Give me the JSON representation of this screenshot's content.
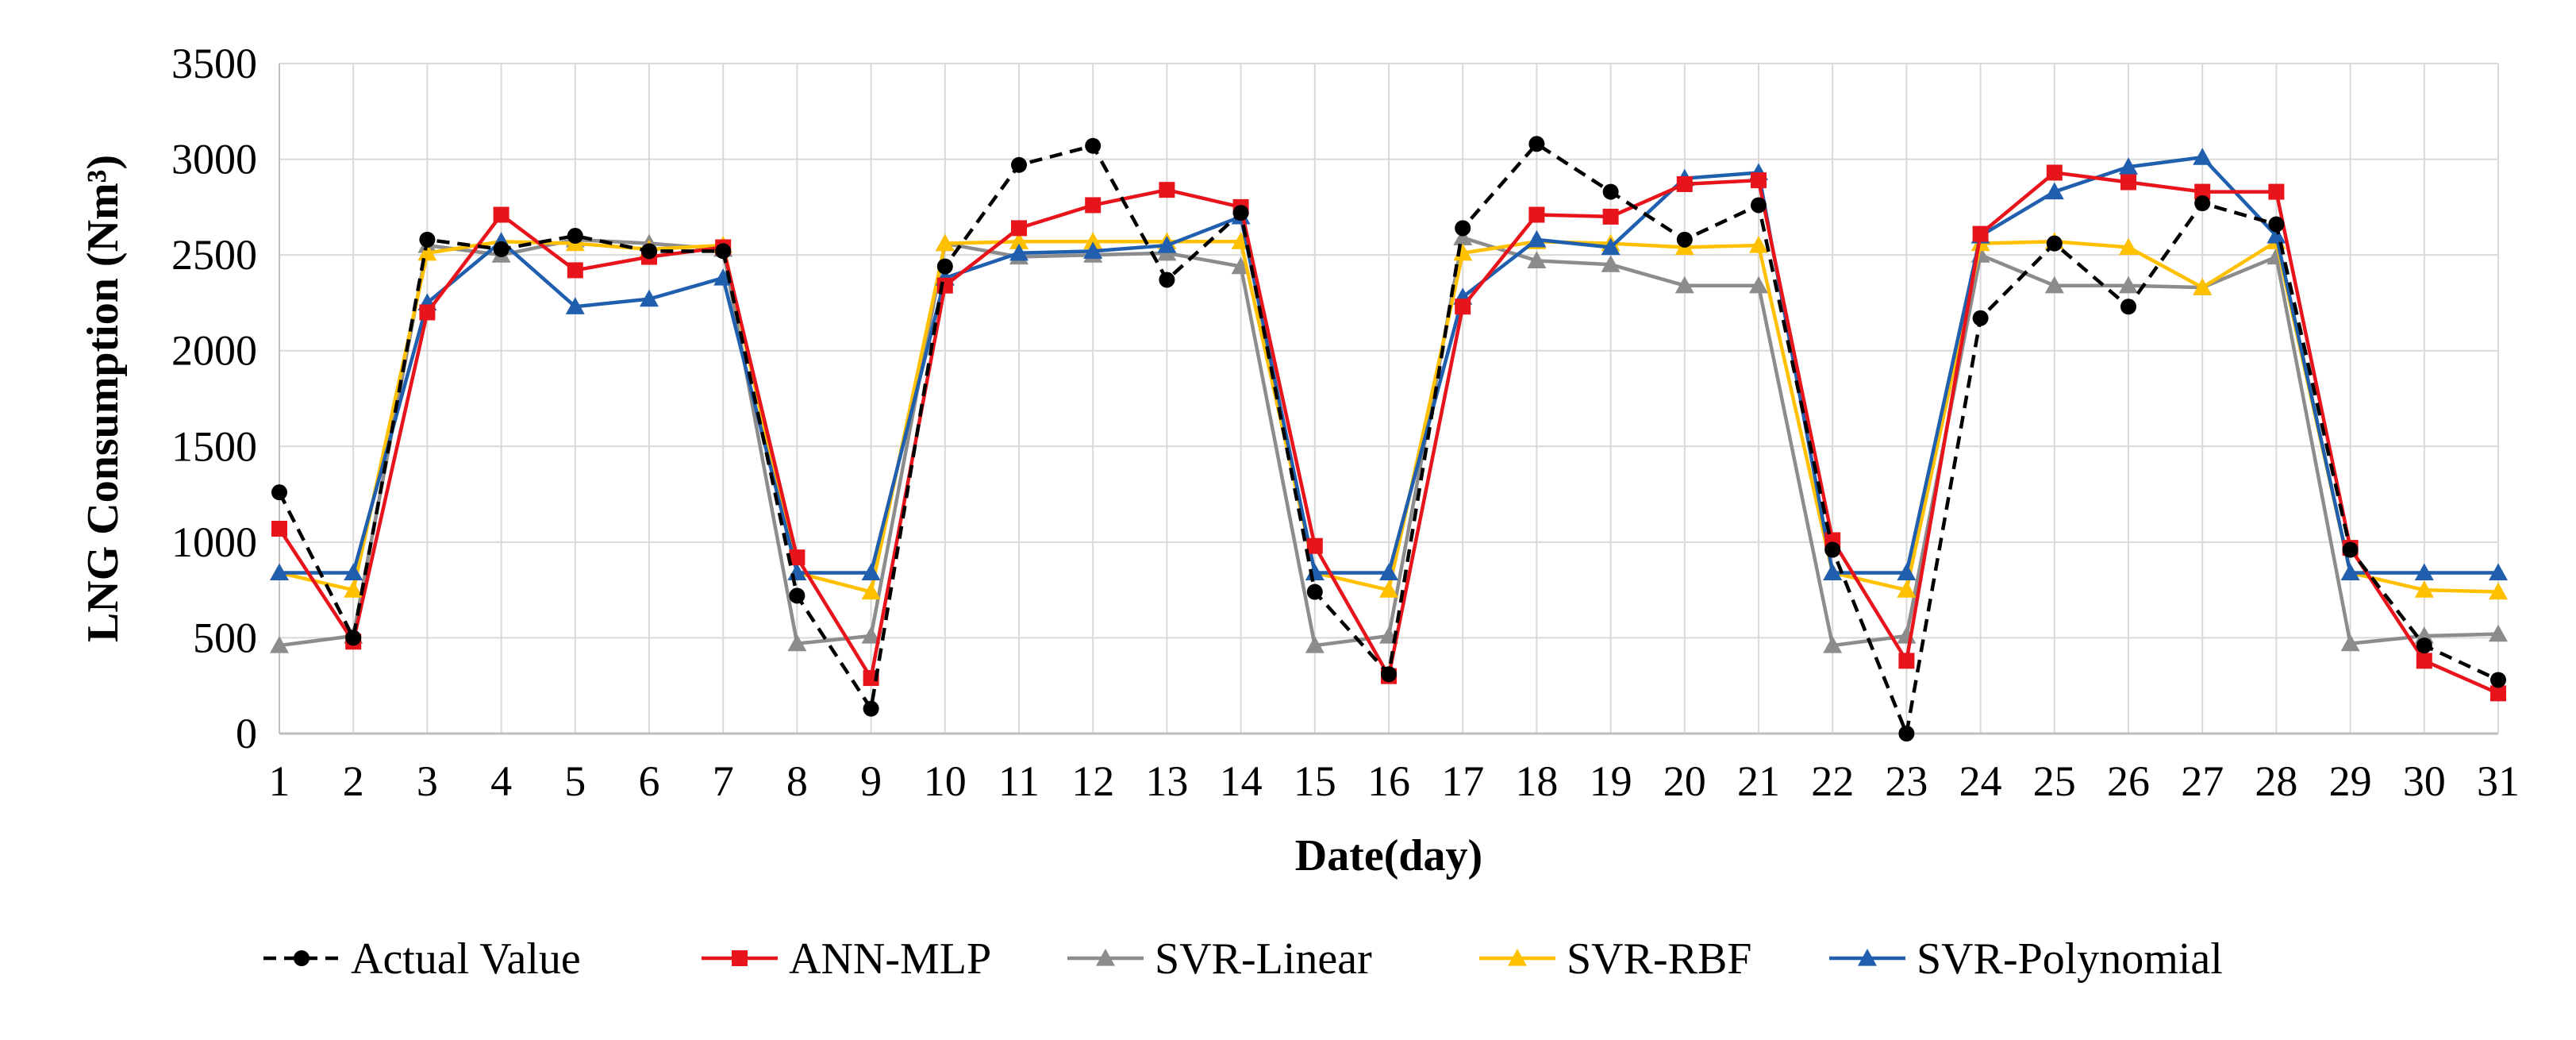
{
  "chart_data": {
    "type": "line",
    "title": "",
    "xlabel": "Date(day)",
    "ylabel": "LNG Consumption (Nm³)",
    "xlim": [
      1,
      31
    ],
    "ylim": [
      0,
      3500
    ],
    "yticks": [
      0,
      500,
      1000,
      1500,
      2000,
      2500,
      3000,
      3500
    ],
    "grid": "horizontal",
    "legend_position": "bottom",
    "x": [
      1,
      2,
      3,
      4,
      5,
      6,
      7,
      8,
      9,
      10,
      11,
      12,
      13,
      14,
      15,
      16,
      17,
      18,
      19,
      20,
      21,
      22,
      23,
      24,
      25,
      26,
      27,
      28,
      29,
      30,
      31
    ],
    "series": [
      {
        "name": "Actual Value",
        "color": "#000000",
        "marker": "circle",
        "line_style": "dashed",
        "values": [
          1260,
          500,
          2580,
          2530,
          2600,
          2520,
          2520,
          720,
          130,
          2440,
          2970,
          3070,
          2370,
          2720,
          740,
          310,
          2640,
          3080,
          2830,
          2580,
          2760,
          960,
          0,
          2170,
          2560,
          2230,
          2770,
          2660,
          960,
          460,
          280
        ]
      },
      {
        "name": "ANN-MLP",
        "color": "#e8141c",
        "marker": "square",
        "line_style": "solid",
        "values": [
          1070,
          480,
          2200,
          2710,
          2420,
          2490,
          2540,
          920,
          290,
          2340,
          2640,
          2760,
          2840,
          2750,
          980,
          300,
          2230,
          2710,
          2700,
          2870,
          2890,
          1010,
          380,
          2610,
          2930,
          2880,
          2830,
          2830,
          970,
          380,
          210
        ]
      },
      {
        "name": "SVR-Linear",
        "color": "#8c8c8c",
        "marker": "triangle",
        "line_style": "solid",
        "values": [
          460,
          510,
          2550,
          2500,
          2580,
          2560,
          2530,
          470,
          510,
          2560,
          2490,
          2500,
          2510,
          2440,
          460,
          510,
          2590,
          2470,
          2450,
          2340,
          2340,
          460,
          510,
          2500,
          2340,
          2340,
          2330,
          2490,
          470,
          510,
          520
        ]
      },
      {
        "name": "SVR-RBF",
        "color": "#ffc000",
        "marker": "triangle",
        "line_style": "solid",
        "values": [
          840,
          750,
          2510,
          2570,
          2560,
          2530,
          2550,
          840,
          740,
          2560,
          2570,
          2570,
          2570,
          2570,
          840,
          750,
          2510,
          2570,
          2560,
          2540,
          2550,
          840,
          750,
          2560,
          2570,
          2540,
          2330,
          2570,
          840,
          750,
          740
        ]
      },
      {
        "name": "SVR-Polynomial",
        "color": "#1f5fae",
        "marker": "triangle",
        "line_style": "solid",
        "values": [
          840,
          840,
          2250,
          2570,
          2230,
          2270,
          2380,
          840,
          840,
          2380,
          2510,
          2520,
          2550,
          2700,
          840,
          840,
          2280,
          2580,
          2540,
          2900,
          2930,
          840,
          840,
          2600,
          2830,
          2960,
          3010,
          2600,
          840,
          840,
          840
        ]
      }
    ]
  }
}
